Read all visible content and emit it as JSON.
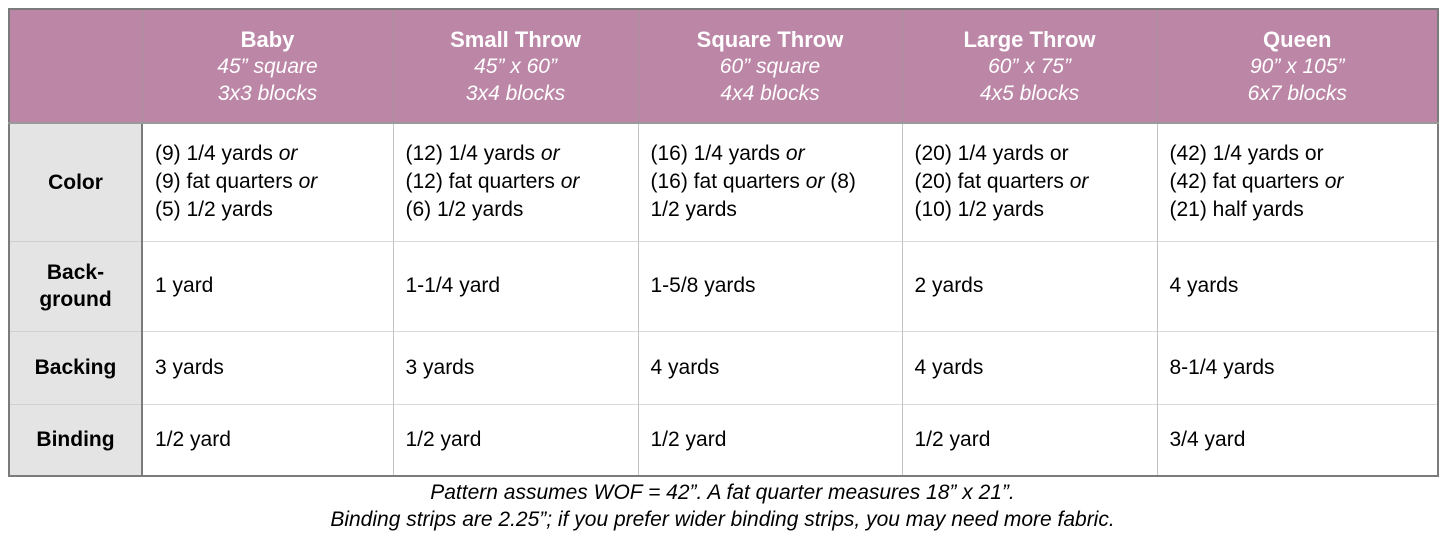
{
  "colors": {
    "header_bg": "#bc86a6",
    "header_text": "#ffffff",
    "label_bg": "#e4e4e4",
    "body_text": "#000000",
    "outer_border": "#7b7b7b",
    "inner_border_vertical": "#c2c2c2",
    "inner_border_horizontal": "#dadada"
  },
  "table": {
    "corner_label": "",
    "columns": [
      {
        "name": "Baby",
        "size": "45” square",
        "blocks": "3x3 blocks"
      },
      {
        "name": "Small Throw",
        "size": "45” x 60”",
        "blocks": "3x4 blocks"
      },
      {
        "name": "Square Throw",
        "size": "60” square",
        "blocks": "4x4 blocks"
      },
      {
        "name": "Large Throw",
        "size": "60” x 75”",
        "blocks": "4x5 blocks"
      },
      {
        "name": "Queen",
        "size": "90” x 105”",
        "blocks": "6x7 blocks"
      }
    ],
    "rows": [
      {
        "label": "Color",
        "cells": [
          {
            "lines": [
              [
                {
                  "t": "(9) 1/4 yards "
                },
                {
                  "t": "or",
                  "it": true
                }
              ],
              [
                {
                  "t": "(9) fat quarters "
                },
                {
                  "t": "or",
                  "it": true
                }
              ],
              [
                {
                  "t": "(5) 1/2 yards"
                }
              ]
            ]
          },
          {
            "lines": [
              [
                {
                  "t": "(12) 1/4 yards "
                },
                {
                  "t": "or",
                  "it": true
                }
              ],
              [
                {
                  "t": "(12) fat quarters "
                },
                {
                  "t": "or",
                  "it": true
                }
              ],
              [
                {
                  "t": "(6) 1/2 yards"
                }
              ]
            ]
          },
          {
            "lines": [
              [
                {
                  "t": "(16) 1/4 yards "
                },
                {
                  "t": "or",
                  "it": true
                }
              ],
              [
                {
                  "t": "(16) fat quarters "
                },
                {
                  "t": "or",
                  "it": true
                },
                {
                  "t": " (8)"
                }
              ],
              [
                {
                  "t": "1/2 yards"
                }
              ]
            ]
          },
          {
            "lines": [
              [
                {
                  "t": "(20) 1/4 yards or"
                }
              ],
              [
                {
                  "t": "(20) fat quarters "
                },
                {
                  "t": "or",
                  "it": true
                }
              ],
              [
                {
                  "t": "(10) 1/2 yards"
                }
              ]
            ]
          },
          {
            "lines": [
              [
                {
                  "t": "(42) 1/4 yards or"
                }
              ],
              [
                {
                  "t": "(42) fat quarters "
                },
                {
                  "t": "or",
                  "it": true
                }
              ],
              [
                {
                  "t": "(21) half yards"
                }
              ]
            ]
          }
        ]
      },
      {
        "label": "Back-\nground",
        "cells": [
          {
            "lines": [
              [
                {
                  "t": "1 yard"
                }
              ]
            ]
          },
          {
            "lines": [
              [
                {
                  "t": "1-1/4 yard"
                }
              ]
            ]
          },
          {
            "lines": [
              [
                {
                  "t": "1-5/8 yards"
                }
              ]
            ]
          },
          {
            "lines": [
              [
                {
                  "t": "2 yards"
                }
              ]
            ]
          },
          {
            "lines": [
              [
                {
                  "t": "4 yards"
                }
              ]
            ]
          }
        ]
      },
      {
        "label": "Backing",
        "cells": [
          {
            "lines": [
              [
                {
                  "t": "3 yards"
                }
              ]
            ]
          },
          {
            "lines": [
              [
                {
                  "t": "3 yards"
                }
              ]
            ]
          },
          {
            "lines": [
              [
                {
                  "t": "4 yards"
                }
              ]
            ]
          },
          {
            "lines": [
              [
                {
                  "t": "4 yards"
                }
              ]
            ]
          },
          {
            "lines": [
              [
                {
                  "t": "8-1/4 yards"
                }
              ]
            ]
          }
        ]
      },
      {
        "label": "Binding",
        "cells": [
          {
            "lines": [
              [
                {
                  "t": "1/2 yard"
                }
              ]
            ]
          },
          {
            "lines": [
              [
                {
                  "t": "1/2 yard"
                }
              ]
            ]
          },
          {
            "lines": [
              [
                {
                  "t": "1/2 yard"
                }
              ]
            ]
          },
          {
            "lines": [
              [
                {
                  "t": "1/2 yard"
                }
              ]
            ]
          },
          {
            "lines": [
              [
                {
                  "t": "3/4 yard"
                }
              ]
            ]
          }
        ]
      }
    ]
  },
  "notes": [
    "Pattern assumes WOF = 42”. A fat quarter measures 18” x 21”.",
    "Binding strips are 2.25”; if you prefer wider binding strips, you may need more fabric."
  ]
}
